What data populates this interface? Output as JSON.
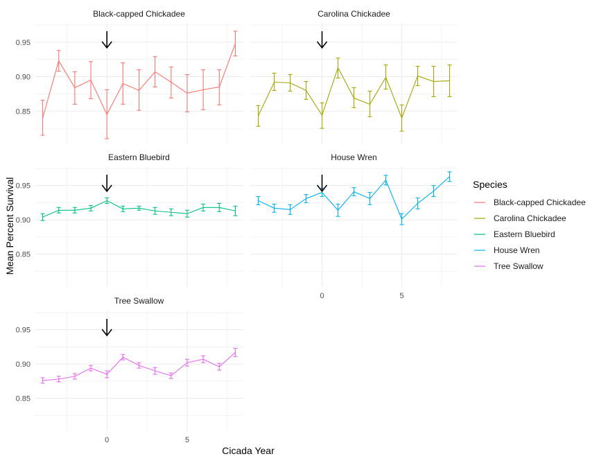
{
  "chart_data": {
    "type": "line",
    "xlabel": "Cicada Year",
    "ylabel": "Mean Percent Survival",
    "x_ticks": [
      0,
      5
    ],
    "y_ticks": [
      "0.85",
      "0.90",
      "0.95"
    ],
    "y_tick_values": [
      0.85,
      0.9,
      0.95
    ],
    "xlim": [
      -4.5,
      8.5
    ],
    "ylim": [
      0.802,
      0.978
    ],
    "grid": true,
    "arrow_at_x": 0,
    "legend": {
      "title": "Species",
      "position": "right"
    },
    "panels": [
      {
        "name": "Black-capped Chickadee",
        "color": "#F8766D",
        "x": [
          -4,
          -3,
          -2,
          -1,
          0,
          1,
          2,
          3,
          4,
          5,
          6,
          7,
          8
        ],
        "y": [
          0.84,
          0.923,
          0.884,
          0.895,
          0.845,
          0.89,
          0.88,
          0.907,
          0.892,
          0.876,
          0.881,
          0.885,
          0.948
        ],
        "lower": [
          0.815,
          0.908,
          0.86,
          0.868,
          0.81,
          0.86,
          0.851,
          0.885,
          0.869,
          0.849,
          0.852,
          0.859,
          0.93
        ],
        "upper": [
          0.866,
          0.938,
          0.907,
          0.922,
          0.881,
          0.92,
          0.91,
          0.929,
          0.914,
          0.903,
          0.91,
          0.91,
          0.966
        ]
      },
      {
        "name": "Carolina Chickadee",
        "color": "#A3A500",
        "x": [
          -4,
          -3,
          -2,
          -1,
          0,
          1,
          2,
          3,
          4,
          5,
          6,
          7,
          8
        ],
        "y": [
          0.843,
          0.892,
          0.891,
          0.88,
          0.844,
          0.913,
          0.869,
          0.86,
          0.899,
          0.84,
          0.901,
          0.893,
          0.894
        ],
        "lower": [
          0.828,
          0.88,
          0.879,
          0.867,
          0.825,
          0.898,
          0.855,
          0.842,
          0.882,
          0.821,
          0.887,
          0.871,
          0.871
        ],
        "upper": [
          0.858,
          0.905,
          0.903,
          0.893,
          0.862,
          0.927,
          0.884,
          0.879,
          0.917,
          0.859,
          0.915,
          0.915,
          0.917
        ]
      },
      {
        "name": "Eastern Bluebird",
        "color": "#00BF7D",
        "x": [
          -4,
          -3,
          -2,
          -1,
          0,
          1,
          2,
          3,
          4,
          5,
          6,
          7,
          8
        ],
        "y": [
          0.904,
          0.914,
          0.914,
          0.917,
          0.928,
          0.916,
          0.917,
          0.913,
          0.911,
          0.909,
          0.918,
          0.918,
          0.913
        ],
        "lower": [
          0.899,
          0.91,
          0.91,
          0.913,
          0.924,
          0.912,
          0.914,
          0.908,
          0.906,
          0.904,
          0.913,
          0.912,
          0.906
        ],
        "upper": [
          0.909,
          0.918,
          0.918,
          0.921,
          0.932,
          0.92,
          0.92,
          0.918,
          0.916,
          0.914,
          0.923,
          0.924,
          0.92
        ]
      },
      {
        "name": "House Wren",
        "color": "#00B0F6",
        "x": [
          -4,
          -3,
          -2,
          -1,
          0,
          1,
          2,
          3,
          4,
          5,
          6,
          7,
          8
        ],
        "y": [
          0.928,
          0.917,
          0.915,
          0.931,
          0.94,
          0.914,
          0.941,
          0.931,
          0.958,
          0.901,
          0.924,
          0.942,
          0.963
        ],
        "lower": [
          0.922,
          0.911,
          0.908,
          0.925,
          0.934,
          0.905,
          0.935,
          0.922,
          0.951,
          0.893,
          0.916,
          0.934,
          0.956
        ],
        "upper": [
          0.934,
          0.923,
          0.922,
          0.937,
          0.946,
          0.923,
          0.947,
          0.94,
          0.965,
          0.909,
          0.932,
          0.95,
          0.97
        ]
      },
      {
        "name": "Tree Swallow",
        "color": "#E76BF3",
        "x": [
          -4,
          -3,
          -2,
          -1,
          0,
          1,
          2,
          3,
          4,
          5,
          6,
          7,
          8
        ],
        "y": [
          0.876,
          0.878,
          0.882,
          0.894,
          0.885,
          0.91,
          0.898,
          0.89,
          0.883,
          0.902,
          0.907,
          0.896,
          0.917
        ],
        "lower": [
          0.872,
          0.874,
          0.878,
          0.89,
          0.88,
          0.906,
          0.894,
          0.885,
          0.879,
          0.897,
          0.902,
          0.891,
          0.911
        ],
        "upper": [
          0.88,
          0.882,
          0.886,
          0.898,
          0.89,
          0.914,
          0.902,
          0.895,
          0.887,
          0.907,
          0.912,
          0.901,
          0.923
        ]
      }
    ]
  }
}
